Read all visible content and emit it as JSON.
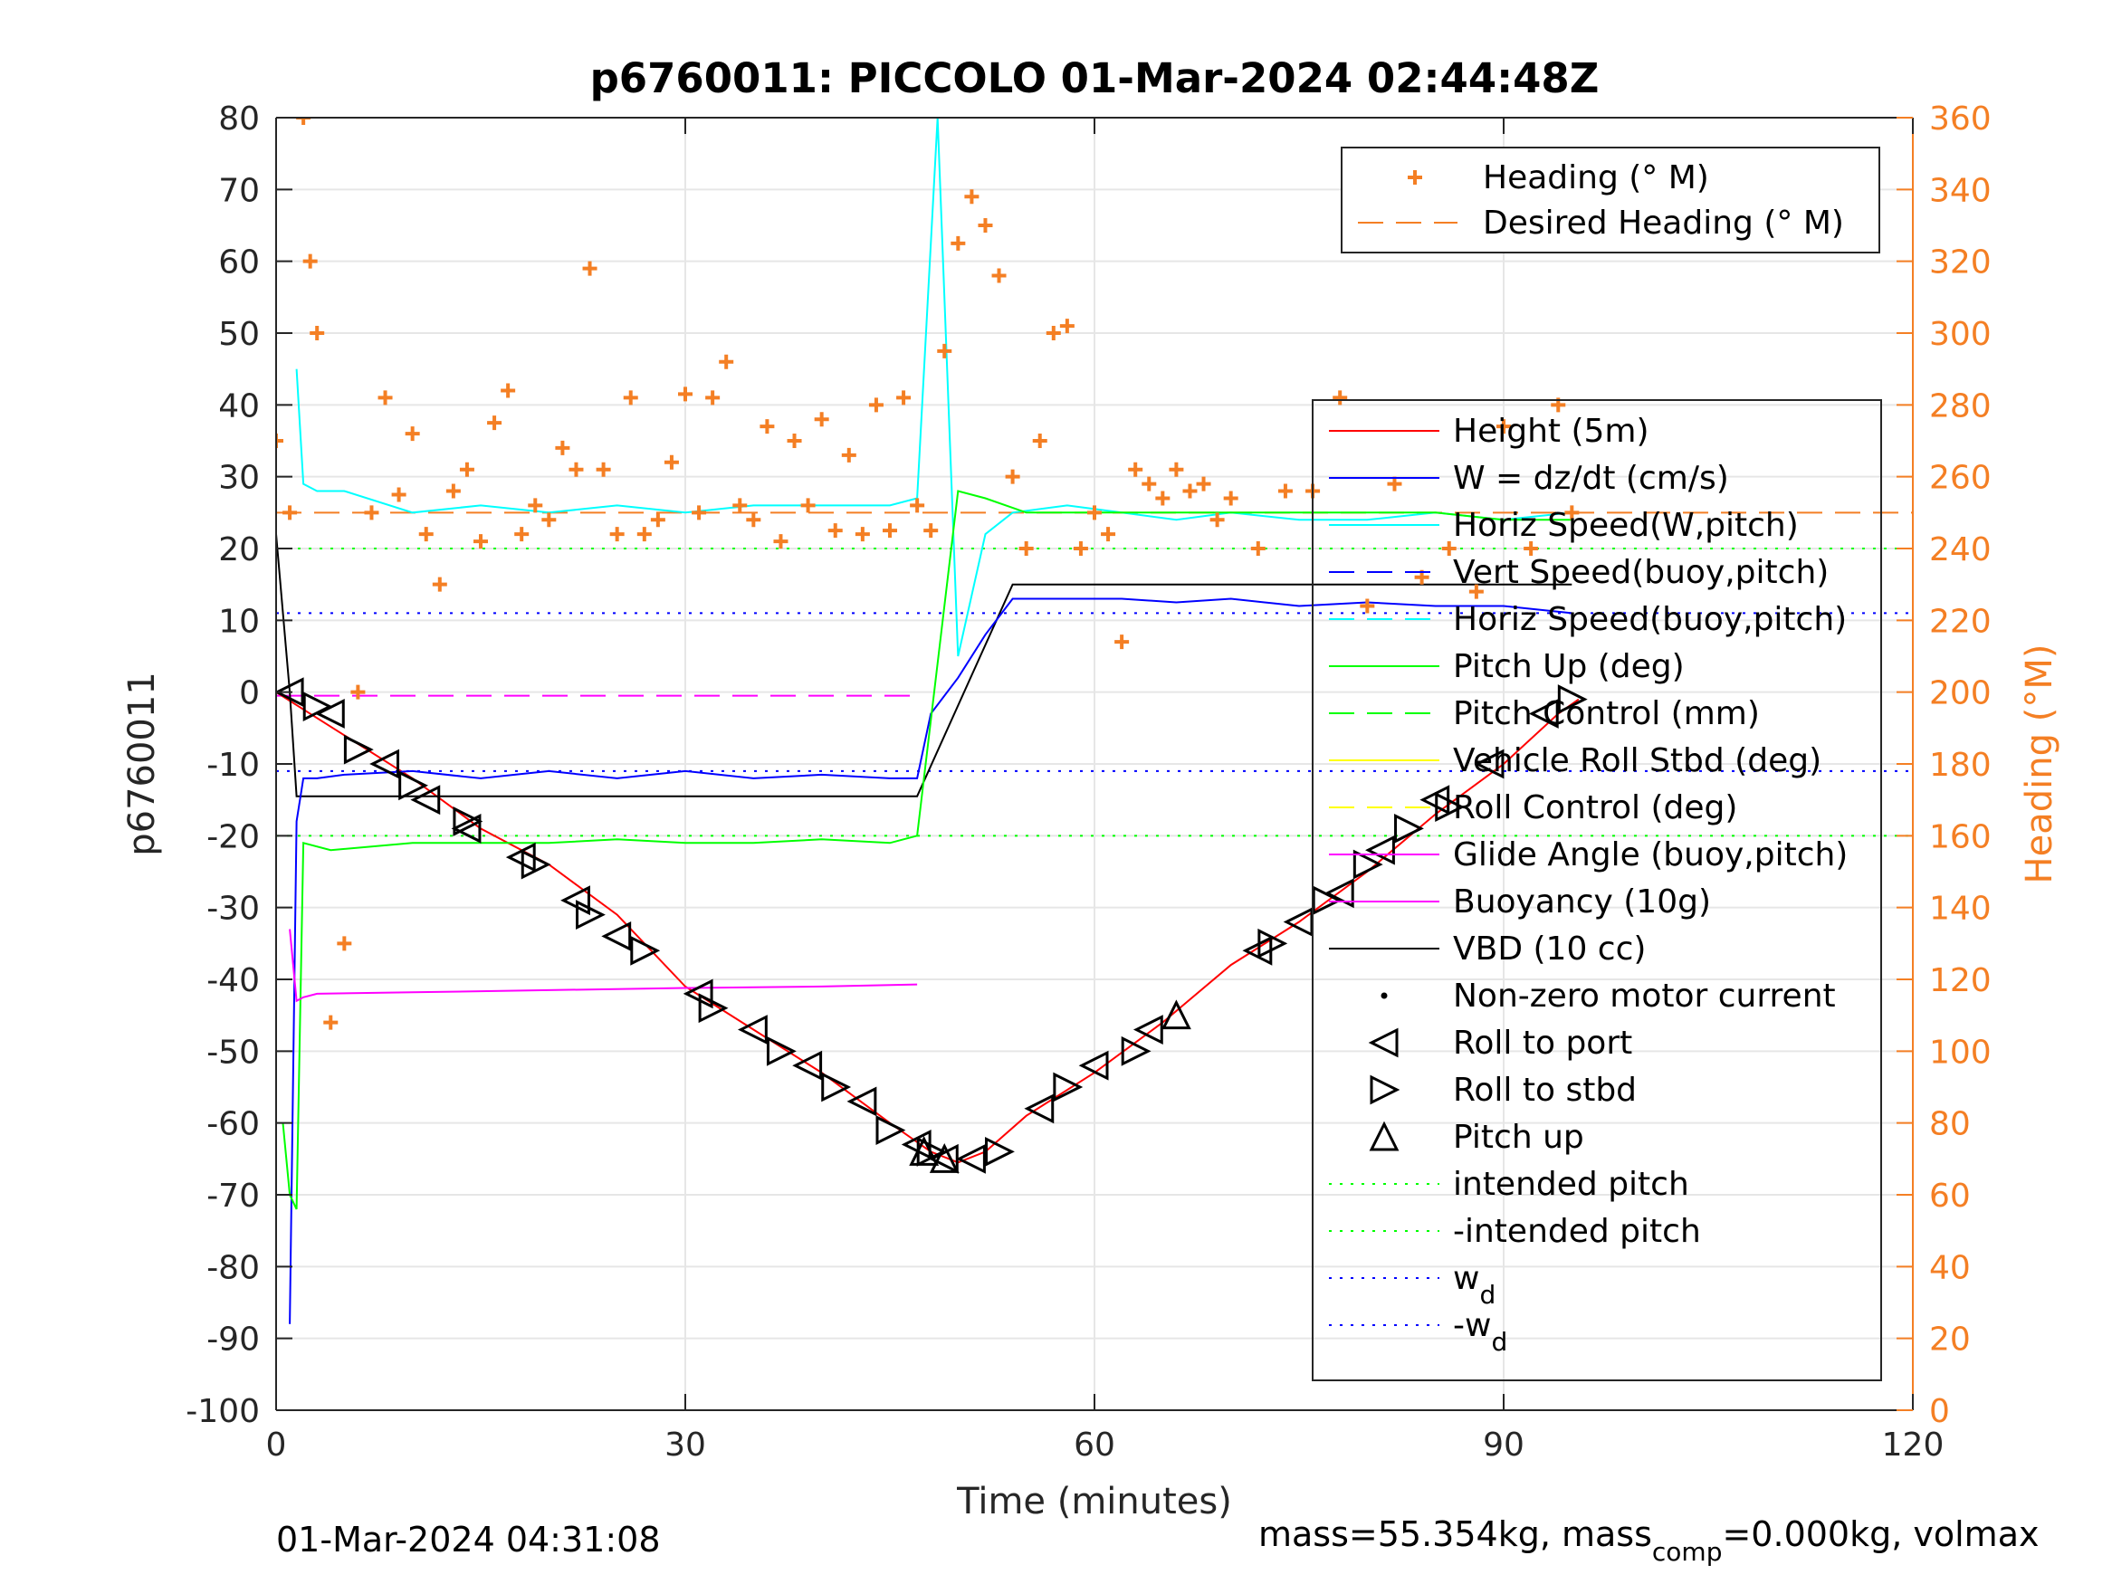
{
  "chart_data": {
    "type": "line",
    "title": "p6760011: PICCOLO 01-Mar-2024 02:44:48Z",
    "xlabel": "Time (minutes)",
    "ylabel": "p6760011",
    "y2label": "Heading (°M)",
    "xlim": [
      0,
      120
    ],
    "ylim": [
      -100,
      80
    ],
    "y2lim": [
      0,
      360
    ],
    "xticks": [
      "0",
      "30",
      "60",
      "90",
      "120"
    ],
    "yticks": [
      "-100",
      "-90",
      "-80",
      "-70",
      "-60",
      "-50",
      "-40",
      "-30",
      "-20",
      "-10",
      "0",
      "10",
      "20",
      "30",
      "40",
      "50",
      "60",
      "70",
      "80"
    ],
    "y2ticks": [
      "0",
      "20",
      "40",
      "60",
      "80",
      "100",
      "120",
      "140",
      "160",
      "180",
      "200",
      "220",
      "240",
      "260",
      "280",
      "300",
      "320",
      "340",
      "360"
    ],
    "grid": true,
    "colors": {
      "height": "#ff0000",
      "w": "#0000ff",
      "horiz_speed_w": "#00ffff",
      "pitch": "#00ff00",
      "roll": "#ffff00",
      "glide_angle": "#ff00ff",
      "vbd": "#000000",
      "heading": "#f47f24",
      "axis": "#262626"
    },
    "legend_heading": {
      "position": "top-right",
      "entries": [
        {
          "label": "Heading (° M)",
          "color": "#f47f24",
          "style": "plus"
        },
        {
          "label": "Desired Heading (° M)",
          "color": "#f47f24",
          "style": "dash"
        }
      ]
    },
    "legend_main": {
      "position": "right",
      "entries": [
        {
          "label": "Height (5m)",
          "color": "#ff0000",
          "style": "solid"
        },
        {
          "label": "W = dz/dt (cm/s)",
          "color": "#0000ff",
          "style": "solid"
        },
        {
          "label": "Horiz Speed(W,pitch)",
          "color": "#00ffff",
          "style": "solid"
        },
        {
          "label": "Vert Speed(buoy,pitch)",
          "color": "#0000ff",
          "style": "dash"
        },
        {
          "label": "Horiz Speed(buoy,pitch)",
          "color": "#00ffff",
          "style": "dash"
        },
        {
          "label": "Pitch Up (deg)",
          "color": "#00ff00",
          "style": "solid"
        },
        {
          "label": "Pitch Control (mm)",
          "color": "#00ff00",
          "style": "dash"
        },
        {
          "label": "Vehicle Roll Stbd (deg)",
          "color": "#ffff00",
          "style": "solid"
        },
        {
          "label": "Roll Control (deg)",
          "color": "#ffff00",
          "style": "dash"
        },
        {
          "label": "Glide Angle (buoy,pitch)",
          "color": "#ff00ff",
          "style": "solid"
        },
        {
          "label": "Buoyancy (10g)",
          "color": "#ff00ff",
          "style": "solid"
        },
        {
          "label": "VBD (10 cc)",
          "color": "#000000",
          "style": "solid"
        },
        {
          "label": "Non-zero motor current",
          "color": "#000000",
          "style": "dot"
        },
        {
          "label": "Roll to port",
          "color": "#000000",
          "style": "tri-left"
        },
        {
          "label": "Roll to stbd",
          "color": "#000000",
          "style": "tri-right"
        },
        {
          "label": "Pitch up",
          "color": "#000000",
          "style": "tri-up"
        },
        {
          "label": "intended pitch",
          "color": "#00ff00",
          "style": "dotted"
        },
        {
          "label": "-intended pitch",
          "color": "#00ff00",
          "style": "dotted"
        },
        {
          "label": "w",
          "sub": "d",
          "color": "#0000ff",
          "style": "dotted"
        },
        {
          "label": "-w",
          "sub": "d",
          "color": "#0000ff",
          "style": "dotted"
        }
      ]
    },
    "reference_lines": {
      "intended_pitch": 20,
      "wd": 11,
      "desired_heading": 250,
      "glide_up_level": -0.5
    },
    "series": [
      {
        "name": "Height (5m)",
        "key": "height",
        "axis": "left",
        "x": [
          0,
          5,
          10,
          15,
          20,
          25,
          30,
          35,
          40,
          45,
          48,
          50,
          52,
          55,
          60,
          65,
          70,
          75,
          80,
          85,
          90,
          94,
          95.5
        ],
        "y": [
          0,
          -6,
          -12,
          -19,
          -24,
          -31,
          -41,
          -47,
          -53,
          -60,
          -64,
          -65.5,
          -64,
          -59,
          -53,
          -46,
          -38,
          -32,
          -25,
          -17,
          -10,
          -3,
          -1
        ]
      },
      {
        "name": "VBD (10 cc)",
        "key": "vbd",
        "axis": "left",
        "x": [
          0,
          1,
          1.5,
          47,
          54,
          95
        ],
        "y": [
          22,
          0,
          -14.5,
          -14.5,
          15,
          15
        ]
      },
      {
        "name": "W = dz/dt (cm/s)",
        "key": "w",
        "axis": "left",
        "x": [
          1,
          1.5,
          2,
          3,
          5,
          10,
          15,
          20,
          25,
          30,
          35,
          40,
          45,
          47,
          48,
          50,
          52,
          54,
          58,
          62,
          66,
          70,
          75,
          80,
          85,
          90,
          95
        ],
        "y": [
          -88,
          -18,
          -12,
          -12,
          -11.5,
          -11,
          -12,
          -11,
          -12,
          -11,
          -12,
          -11.5,
          -12,
          -12,
          -3,
          2,
          8,
          13,
          13,
          13,
          12.5,
          13,
          12,
          12.5,
          12,
          12,
          11
        ]
      },
      {
        "name": "Horiz Speed(W,pitch)",
        "key": "horiz_speed_w",
        "axis": "left",
        "x": [
          1.5,
          2,
          3,
          5,
          10,
          15,
          20,
          25,
          30,
          35,
          40,
          45,
          47,
          48.5,
          50,
          52,
          54,
          58,
          62,
          66,
          70,
          75,
          80,
          85,
          90,
          95
        ],
        "y": [
          45,
          29,
          28,
          28,
          25,
          26,
          25,
          26,
          25,
          26,
          26,
          26,
          27,
          80,
          5,
          22,
          25,
          26,
          25,
          24,
          25,
          24,
          24,
          25,
          24,
          25
        ]
      },
      {
        "name": "Pitch Up (deg)",
        "key": "pitch",
        "axis": "left",
        "x": [
          0.5,
          1,
          1.5,
          2,
          4,
          10,
          15,
          20,
          25,
          30,
          35,
          40,
          45,
          47,
          50,
          52,
          55,
          60,
          65,
          70,
          75,
          80,
          85,
          90,
          95
        ],
        "y": [
          -60,
          -70,
          -72,
          -21,
          -22,
          -21,
          -21,
          -21,
          -20.5,
          -21,
          -21,
          -20.5,
          -21,
          -20,
          28,
          27,
          25,
          25,
          25,
          25,
          25,
          25,
          25,
          24,
          24
        ]
      },
      {
        "name": "Buoyancy (10g)",
        "key": "glide_angle",
        "axis": "left",
        "x": [
          1,
          1.5,
          2,
          3,
          10,
          20,
          30,
          40,
          47
        ],
        "y": [
          -33,
          -43,
          -42.5,
          -42,
          -41.8,
          -41.5,
          -41.2,
          -41,
          -40.7
        ]
      },
      {
        "name": "Heading (° M)",
        "key": "heading",
        "axis": "right",
        "x": [
          0,
          1,
          2,
          2.5,
          3,
          4,
          5,
          6,
          7,
          8,
          9,
          10,
          11,
          12,
          13,
          14,
          15,
          16,
          17,
          18,
          19,
          20,
          21,
          22,
          23,
          24,
          25,
          26,
          27,
          28,
          29,
          30,
          31,
          32,
          33,
          34,
          35,
          36,
          37,
          38,
          39,
          40,
          41,
          42,
          43,
          44,
          45,
          46,
          47,
          48,
          49,
          50,
          51,
          52,
          53,
          54,
          55,
          56,
          57,
          58,
          59,
          60,
          61,
          62,
          63,
          64,
          65,
          66,
          67,
          68,
          69,
          70,
          72,
          74,
          76,
          78,
          80,
          82,
          84,
          86,
          88,
          90,
          92,
          94,
          95
        ],
        "y": [
          270,
          250,
          360,
          320,
          300,
          108,
          130,
          200,
          250,
          282,
          255,
          272,
          244,
          230,
          256,
          262,
          242,
          275,
          284,
          244,
          252,
          248,
          268,
          262,
          318,
          262,
          244,
          282,
          244,
          248,
          264,
          283,
          250,
          282,
          292,
          252,
          248,
          274,
          242,
          270,
          252,
          276,
          245,
          266,
          244,
          280,
          245,
          282,
          252,
          245,
          295,
          325,
          338,
          330,
          316,
          260,
          240,
          270,
          300,
          302,
          240,
          250,
          244,
          214,
          262,
          258,
          254,
          262,
          256,
          258,
          248,
          254,
          240,
          256,
          256,
          282,
          224,
          258,
          232,
          240,
          228,
          274,
          240,
          280,
          250
        ]
      }
    ],
    "markers": {
      "roll_to_port": {
        "x": [
          1,
          4,
          8,
          11,
          14,
          18,
          22,
          25,
          31,
          35,
          39,
          43,
          47,
          49,
          51,
          56,
          60,
          64,
          72,
          75,
          78,
          81,
          85,
          89,
          93
        ],
        "y": [
          0,
          -3,
          -10,
          -15,
          -19,
          -23,
          -29,
          -34,
          -42,
          -47,
          -52,
          -57,
          -63,
          -65,
          -65,
          -58,
          -52,
          -47,
          -36,
          -32,
          -28,
          -22,
          -15,
          -10,
          -3
        ]
      },
      "roll_to_stbd": {
        "x": [
          3,
          6,
          10,
          14,
          19,
          23,
          27,
          32,
          37,
          41,
          45,
          48,
          53,
          58,
          63,
          73,
          77,
          80,
          83,
          86,
          95
        ],
        "y": [
          -2,
          -8,
          -13,
          -18,
          -24,
          -31,
          -36,
          -44,
          -50,
          -55,
          -61,
          -64,
          -64,
          -55,
          -50,
          -35,
          -29,
          -24,
          -19,
          -16,
          -1
        ]
      },
      "pitch_up": {
        "x": [
          47.5,
          49,
          66
        ],
        "y": [
          -64,
          -65,
          -45
        ]
      }
    }
  },
  "footer": {
    "left": "01-Mar-2024 04:31:08",
    "right": "mass=55.354kg, mass",
    "right_sub": "comp",
    "right_tail": "=0.000kg, volmax"
  }
}
